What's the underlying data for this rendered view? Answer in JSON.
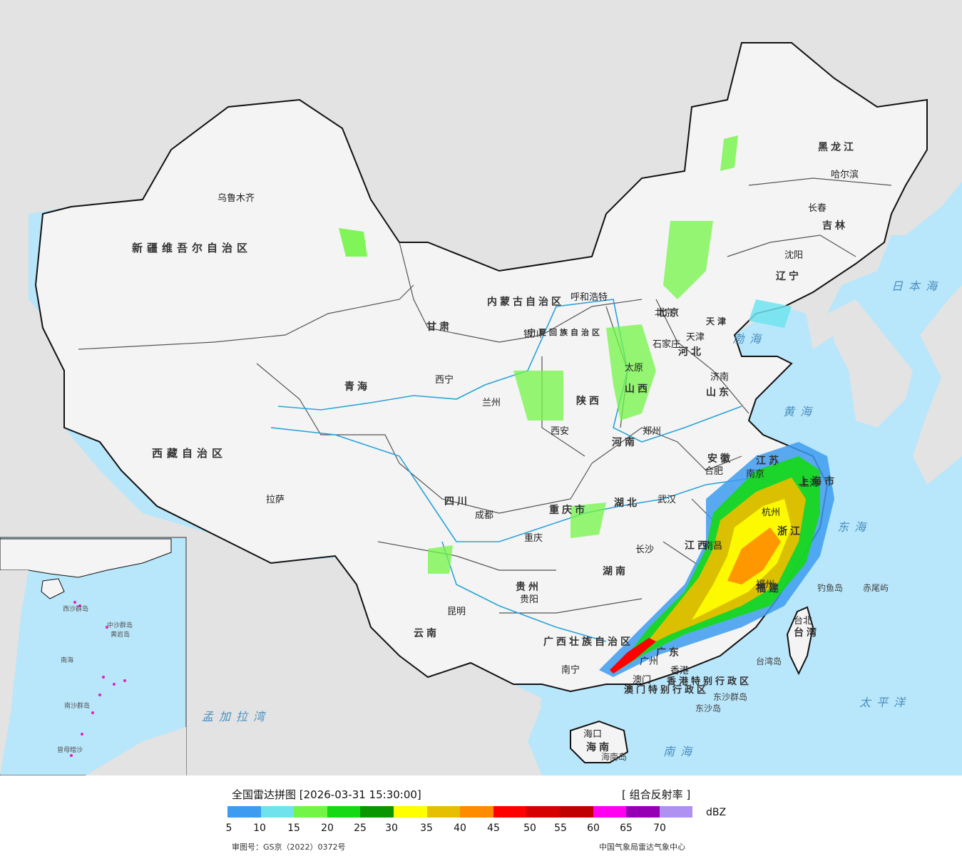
{
  "colors": {
    "sea": "#b8e6fa",
    "land": "#f4f4f4",
    "foreign_land": "#e6e6e6",
    "border": "#111111",
    "river": "#2aa3d8"
  },
  "labels": {
    "regions": [
      "新疆维吾尔自治区",
      "西藏自治区",
      "青海",
      "甘肃",
      "内蒙古自治区",
      "黑龙江",
      "吉林",
      "辽宁",
      "河北",
      "山西",
      "陕西",
      "四川",
      "云南",
      "贵州",
      "湖南",
      "湖北",
      "河南",
      "山东",
      "安徽",
      "江苏",
      "浙江",
      "福建",
      "江西",
      "广东",
      "广西壮族自治区",
      "海南",
      "台湾",
      "宁夏回族自治区",
      "重庆市",
      "上海市",
      "北京",
      "天津",
      "香港特别行政区",
      "澳门特别行政区"
    ],
    "cities": [
      "乌鲁木齐",
      "拉萨",
      "西宁",
      "兰州",
      "银川",
      "呼和浩特",
      "太原",
      "石家庄",
      "北京",
      "天津",
      "济南",
      "郑州",
      "西安",
      "成都",
      "重庆",
      "贵阳",
      "昆明",
      "南宁",
      "长沙",
      "武汉",
      "合肥",
      "南京",
      "上海",
      "杭州",
      "福州",
      "南昌",
      "广州",
      "香港",
      "澳门",
      "海口",
      "沈阳",
      "长春",
      "哈尔滨",
      "台北"
    ],
    "seas": [
      "日本海",
      "渤海",
      "黄海",
      "东海",
      "南海",
      "太平洋",
      "孟加拉湾"
    ],
    "islands": [
      "钓鱼岛",
      "赤尾屿",
      "台湾岛",
      "东沙群岛",
      "东沙岛",
      "海南岛"
    ],
    "inset": [
      "南海",
      "中沙群岛",
      "西沙群岛",
      "南沙群岛",
      "曾母暗沙",
      "黄岩岛"
    ]
  },
  "legend": {
    "title": "全国雷达拼图 [2026-03-31 15:30:00]",
    "product": "[ 组合反射率 ]",
    "unit": "dBZ",
    "ticks": [
      "5",
      "10",
      "15",
      "20",
      "25",
      "30",
      "35",
      "40",
      "45",
      "50",
      "55",
      "60",
      "65",
      "70"
    ],
    "colors": [
      "#3d9bf0",
      "#6ee3ee",
      "#73f546",
      "#14d914",
      "#0a9600",
      "#ffff00",
      "#e6bf00",
      "#ff8c00",
      "#ff0000",
      "#d60000",
      "#c00000",
      "#ff00f0",
      "#9600b4",
      "#ae91f0"
    ],
    "approval": "审图号：GS京（2022）0372号",
    "source": "中国气象局雷达气象中心"
  }
}
